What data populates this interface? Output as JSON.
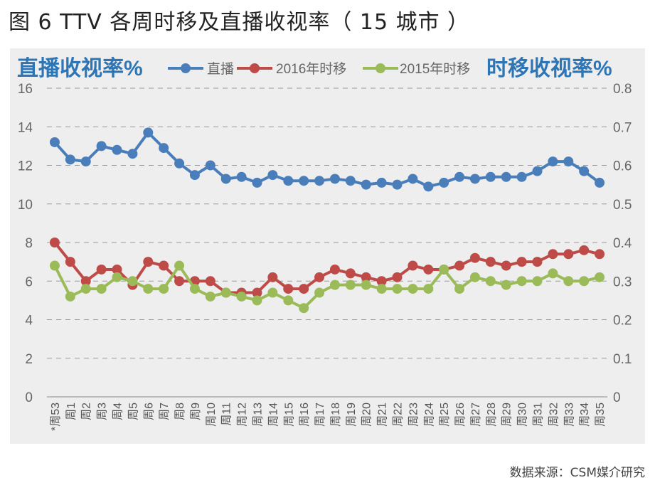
{
  "title": "图 6 TTV 各周时移及直播收视率（ 15 城市 ）",
  "source": "数据来源：CSM媒介研究",
  "chart_data": {
    "type": "line",
    "left_axis_label": "直播收视率%",
    "right_axis_label": "时移收视率%",
    "left_ticks": [
      "16",
      "14",
      "12",
      "10",
      "8",
      "6",
      "4",
      "2",
      "0"
    ],
    "right_ticks": [
      "0.8",
      "0.7",
      "0.6",
      "0.5",
      "0.4",
      "0.3",
      "0.2",
      "0.1",
      "0"
    ],
    "ylim_left": [
      0,
      16
    ],
    "ylim_right": [
      0,
      0.8
    ],
    "grid": true,
    "legend_position": "top",
    "categories": [
      "*周53",
      "周1",
      "周2",
      "周3",
      "周4",
      "周5",
      "周6",
      "周7",
      "周8",
      "周9",
      "周10",
      "周11",
      "周12",
      "周13",
      "周14",
      "周15",
      "周16",
      "周17",
      "周18",
      "周19",
      "周20",
      "周21",
      "周22",
      "周23",
      "周24",
      "周25",
      "周26",
      "周27",
      "周28",
      "周29",
      "周30",
      "周31",
      "周32",
      "周33",
      "周34",
      "周35"
    ],
    "series": [
      {
        "name": "直播",
        "axis": "left",
        "color": "#4a7ebb",
        "values": [
          13.2,
          12.3,
          12.2,
          13.0,
          12.8,
          12.6,
          13.7,
          12.9,
          12.1,
          11.5,
          12.0,
          11.3,
          11.4,
          11.1,
          11.5,
          11.2,
          11.2,
          11.2,
          11.3,
          11.2,
          11.0,
          11.1,
          11.0,
          11.3,
          10.9,
          11.1,
          11.4,
          11.3,
          11.4,
          11.4,
          11.4,
          11.7,
          12.2,
          12.2,
          11.7,
          11.1
        ]
      },
      {
        "name": "2016年时移",
        "axis": "right",
        "color": "#be4b48",
        "values": [
          0.4,
          0.35,
          0.3,
          0.33,
          0.33,
          0.29,
          0.35,
          0.34,
          0.3,
          0.3,
          0.3,
          0.27,
          0.27,
          0.27,
          0.31,
          0.28,
          0.28,
          0.31,
          0.33,
          0.32,
          0.31,
          0.3,
          0.31,
          0.34,
          0.33,
          0.33,
          0.34,
          0.36,
          0.35,
          0.34,
          0.35,
          0.35,
          0.37,
          0.37,
          0.38,
          0.37
        ]
      },
      {
        "name": "2015年时移",
        "axis": "right",
        "color": "#9bbb59",
        "values": [
          0.34,
          0.26,
          0.28,
          0.28,
          0.31,
          0.3,
          0.28,
          0.28,
          0.34,
          0.28,
          0.26,
          0.27,
          0.26,
          0.25,
          0.27,
          0.25,
          0.23,
          0.27,
          0.29,
          0.29,
          0.29,
          0.28,
          0.28,
          0.28,
          0.28,
          0.33,
          0.28,
          0.31,
          0.3,
          0.29,
          0.3,
          0.3,
          0.32,
          0.3,
          0.3,
          0.31
        ]
      }
    ]
  }
}
